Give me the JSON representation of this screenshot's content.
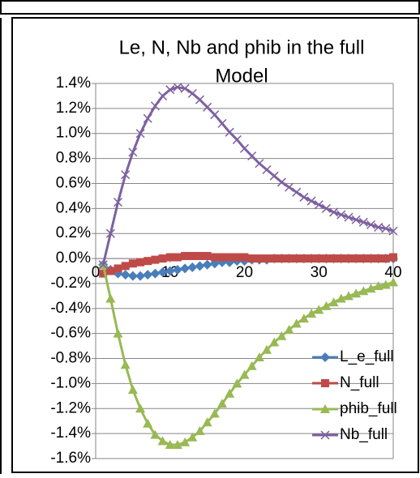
{
  "chart_data": {
    "type": "line",
    "title": "Le, N, Nb and phib in the full Model",
    "x": [
      1,
      2,
      3,
      4,
      5,
      6,
      7,
      8,
      9,
      10,
      11,
      12,
      13,
      14,
      15,
      16,
      17,
      18,
      19,
      20,
      21,
      22,
      23,
      24,
      25,
      26,
      27,
      28,
      29,
      30,
      31,
      32,
      33,
      34,
      35,
      36,
      37,
      38,
      39,
      40
    ],
    "series": [
      {
        "name": "L_e_full",
        "color": "#4a7ebb",
        "marker": "diamond",
        "values": [
          -0.05,
          -0.09,
          -0.12,
          -0.13,
          -0.14,
          -0.14,
          -0.13,
          -0.12,
          -0.11,
          -0.1,
          -0.09,
          -0.08,
          -0.07,
          -0.06,
          -0.05,
          -0.04,
          -0.03,
          -0.03,
          -0.02,
          -0.02,
          -0.01,
          -0.01,
          -0.01,
          0,
          0,
          0,
          0,
          0,
          0,
          0,
          0,
          0,
          0,
          0,
          0,
          0,
          0,
          0,
          0,
          0
        ]
      },
      {
        "name": "N_full",
        "color": "#be4b48",
        "marker": "square",
        "values": [
          -0.12,
          -0.1,
          -0.08,
          -0.06,
          -0.04,
          -0.03,
          -0.02,
          -0.01,
          0,
          0.01,
          0.01,
          0.02,
          0.02,
          0.02,
          0.02,
          0.01,
          0.01,
          0.01,
          0.01,
          0.01,
          0,
          0,
          0,
          0,
          0,
          0,
          0,
          0,
          0,
          0,
          0,
          0,
          0,
          0,
          0,
          0,
          0,
          0,
          0,
          0.01
        ]
      },
      {
        "name": "phib_full",
        "color": "#98b954",
        "marker": "triangle",
        "values": [
          -0.05,
          -0.32,
          -0.6,
          -0.85,
          -1.05,
          -1.2,
          -1.32,
          -1.41,
          -1.46,
          -1.49,
          -1.49,
          -1.47,
          -1.43,
          -1.38,
          -1.31,
          -1.24,
          -1.16,
          -1.08,
          -1.0,
          -0.93,
          -0.86,
          -0.79,
          -0.73,
          -0.67,
          -0.62,
          -0.57,
          -0.52,
          -0.48,
          -0.44,
          -0.41,
          -0.38,
          -0.35,
          -0.32,
          -0.3,
          -0.28,
          -0.26,
          -0.24,
          -0.22,
          -0.21,
          -0.19
        ]
      },
      {
        "name": "Nb_full",
        "color": "#7d60a0",
        "marker": "x",
        "values": [
          -0.05,
          0.2,
          0.45,
          0.67,
          0.85,
          1.0,
          1.12,
          1.22,
          1.3,
          1.35,
          1.37,
          1.36,
          1.32,
          1.27,
          1.21,
          1.15,
          1.08,
          1.01,
          0.95,
          0.88,
          0.82,
          0.76,
          0.71,
          0.66,
          0.61,
          0.57,
          0.53,
          0.49,
          0.46,
          0.43,
          0.4,
          0.37,
          0.35,
          0.33,
          0.31,
          0.29,
          0.27,
          0.25,
          0.24,
          0.22
        ]
      }
    ],
    "xlim": [
      0,
      40
    ],
    "xticks": [
      0,
      10,
      20,
      30,
      40
    ],
    "ylim": [
      -1.6,
      1.4
    ],
    "yticks": [
      {
        "value": -1.6,
        "label": "-1.6%"
      },
      {
        "value": -1.4,
        "label": "-1.4%"
      },
      {
        "value": -1.2,
        "label": "-1.2%"
      },
      {
        "value": -1.0,
        "label": "-1.0%"
      },
      {
        "value": -0.8,
        "label": "-0.8%"
      },
      {
        "value": -0.6,
        "label": "-0.6%"
      },
      {
        "value": -0.4,
        "label": "-0.4%"
      },
      {
        "value": -0.2,
        "label": "-0.2%"
      },
      {
        "value": 0,
        "label": "0.0%"
      },
      {
        "value": 0.2,
        "label": "0.2%"
      },
      {
        "value": 0.4,
        "label": "0.4%"
      },
      {
        "value": 0.6,
        "label": "0.6%"
      },
      {
        "value": 0.8,
        "label": "0.8%"
      },
      {
        "value": 1.0,
        "label": "1.0%"
      },
      {
        "value": 1.2,
        "label": "1.2%"
      },
      {
        "value": 1.4,
        "label": "1.4%"
      }
    ],
    "grid": true,
    "legend": "lower right"
  }
}
